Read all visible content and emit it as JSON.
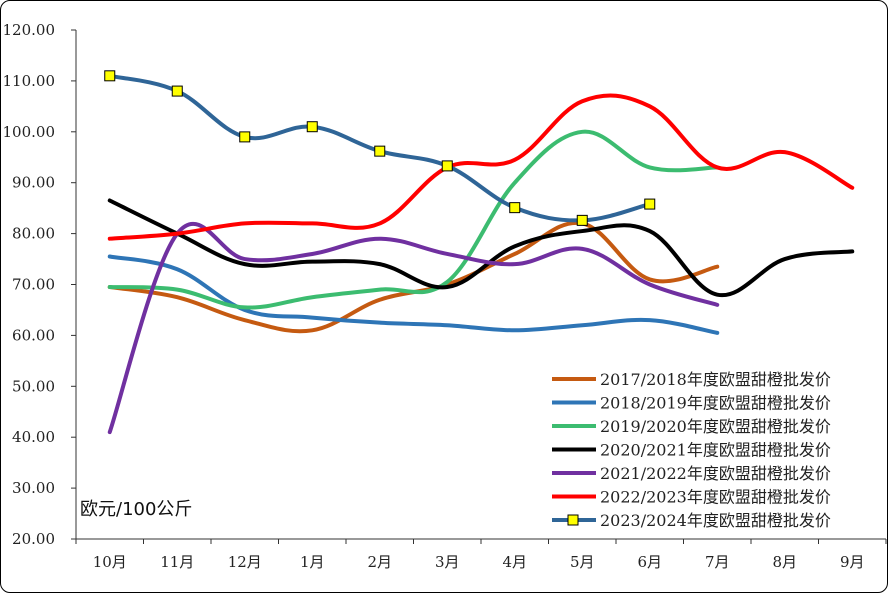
{
  "chart_data": {
    "type": "line",
    "ylabel": "欧元/100公斤",
    "ylim": [
      20,
      120
    ],
    "yticks": [
      "20.00",
      "30.00",
      "40.00",
      "50.00",
      "60.00",
      "70.00",
      "80.00",
      "90.00",
      "100.00",
      "110.00",
      "120.00"
    ],
    "categories": [
      "10月",
      "11月",
      "12月",
      "1月",
      "2月",
      "3月",
      "4月",
      "5月",
      "6月",
      "7月",
      "8月",
      "9月"
    ],
    "legend_position": "bottom-right",
    "series": [
      {
        "name": "2017/2018年度欧盟甜橙批发价",
        "color": "#c55a11",
        "markers": false,
        "values": [
          69.5,
          67.5,
          63.0,
          61.0,
          67.0,
          70.0,
          76.0,
          82.0,
          71.0,
          73.5,
          null,
          null
        ]
      },
      {
        "name": "2018/2019年度欧盟甜橙批发价",
        "color": "#2e75b6",
        "markers": false,
        "values": [
          75.5,
          73.0,
          65.0,
          63.5,
          62.5,
          62.0,
          61.0,
          62.0,
          63.0,
          60.5,
          null,
          null
        ]
      },
      {
        "name": "2019/2020年度欧盟甜橙批发价",
        "color": "#3cbc70",
        "markers": false,
        "values": [
          69.5,
          69.0,
          65.5,
          67.5,
          69.0,
          70.5,
          90.0,
          100.0,
          93.0,
          93.0,
          null,
          null
        ]
      },
      {
        "name": "2020/2021年度欧盟甜橙批发价",
        "color": "#000000",
        "markers": false,
        "values": [
          86.5,
          80.0,
          74.0,
          74.5,
          74.0,
          69.5,
          77.5,
          80.5,
          80.5,
          68.0,
          75.0,
          76.5
        ]
      },
      {
        "name": "2021/2022年度欧盟甜橙批发价",
        "color": "#7030a0",
        "markers": false,
        "values": [
          41.0,
          80.0,
          75.0,
          76.0,
          79.0,
          76.0,
          74.0,
          77.0,
          70.0,
          66.0,
          null,
          null
        ]
      },
      {
        "name": "2022/2023年度欧盟甜橙批发价",
        "color": "#ff0000",
        "markers": false,
        "values": [
          79.0,
          80.0,
          82.0,
          82.0,
          82.0,
          93.0,
          94.5,
          106.0,
          105.0,
          93.0,
          96.0,
          89.0
        ]
      },
      {
        "name": "2023/2024年度欧盟甜橙批发价",
        "color": "#2f6597",
        "markers": true,
        "values": [
          111.0,
          108.0,
          99.0,
          101.0,
          96.2,
          93.3,
          85.1,
          82.6,
          85.8,
          null,
          null,
          null
        ]
      }
    ]
  }
}
